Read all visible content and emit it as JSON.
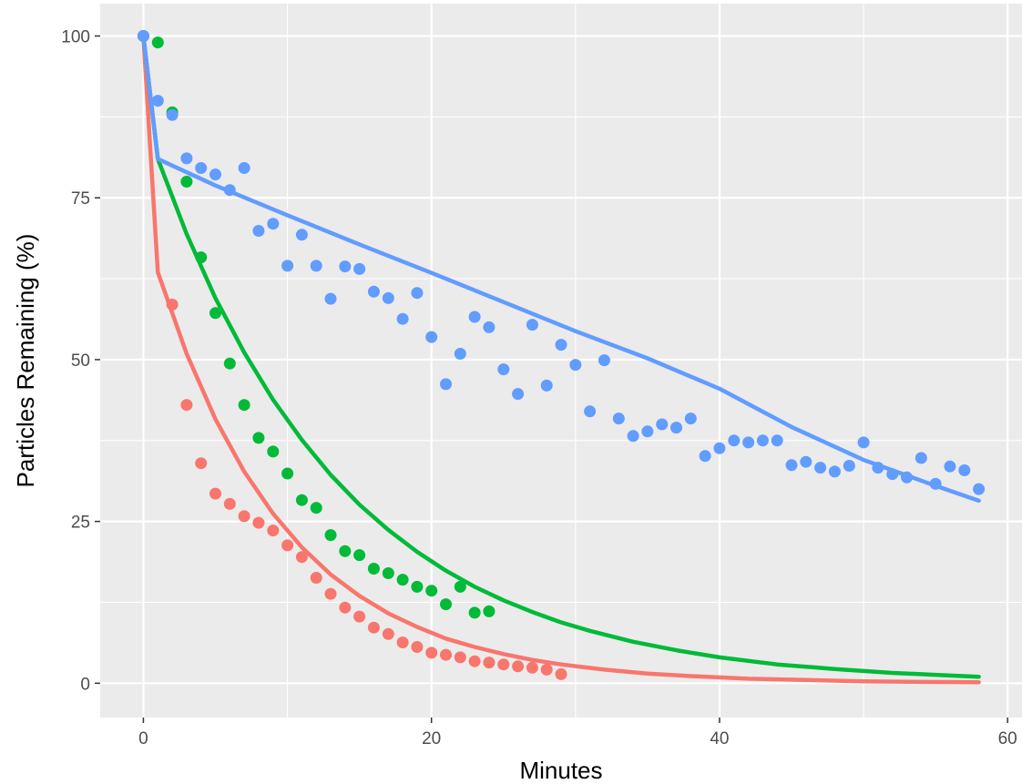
{
  "chart_data": {
    "type": "scatter",
    "title": "",
    "xlabel": "Minutes",
    "ylabel": "Particles Remaining (%)",
    "xlim": [
      -3,
      61
    ],
    "ylim": [
      -5.3,
      105
    ],
    "x_ticks": [
      0,
      20,
      40,
      60
    ],
    "y_ticks": [
      0,
      25,
      50,
      75,
      100
    ],
    "grid": true,
    "legend": "none",
    "series": [
      {
        "color": "#F8766D",
        "points": [
          [
            0,
            100
          ],
          [
            2,
            58.5
          ],
          [
            3,
            43
          ],
          [
            4,
            34
          ],
          [
            5,
            29.3
          ],
          [
            6,
            27.7
          ],
          [
            7,
            25.8
          ],
          [
            8,
            24.8
          ],
          [
            9,
            23.6
          ],
          [
            10,
            21.3
          ],
          [
            11,
            19.5
          ],
          [
            12,
            16.3
          ],
          [
            13,
            13.8
          ],
          [
            14,
            11.7
          ],
          [
            15,
            10.3
          ],
          [
            16,
            8.6
          ],
          [
            17,
            7.6
          ],
          [
            18,
            6.3
          ],
          [
            19,
            5.6
          ],
          [
            20,
            4.7
          ],
          [
            21,
            4.4
          ],
          [
            22,
            4.0
          ],
          [
            23,
            3.4
          ],
          [
            24,
            3.2
          ],
          [
            25,
            2.9
          ],
          [
            26,
            2.6
          ],
          [
            27,
            2.4
          ],
          [
            28,
            2.1
          ],
          [
            29,
            1.4
          ]
        ],
        "fit": [
          [
            0,
            100
          ],
          [
            1,
            63.5
          ],
          [
            3,
            50.9
          ],
          [
            5,
            40.8
          ],
          [
            7,
            32.7
          ],
          [
            9,
            26.2
          ],
          [
            11,
            21.0
          ],
          [
            13,
            16.8
          ],
          [
            15,
            13.5
          ],
          [
            17,
            10.8
          ],
          [
            19,
            8.7
          ],
          [
            21,
            6.9
          ],
          [
            23,
            5.6
          ],
          [
            25,
            4.5
          ],
          [
            27,
            3.6
          ],
          [
            29,
            2.9
          ],
          [
            32,
            2.1
          ],
          [
            35,
            1.5
          ],
          [
            38,
            1.1
          ],
          [
            42,
            0.7
          ],
          [
            46,
            0.5
          ],
          [
            50,
            0.3
          ],
          [
            54,
            0.2
          ],
          [
            58,
            0.15
          ]
        ]
      },
      {
        "color": "#00BA38",
        "points": [
          [
            0,
            100
          ],
          [
            1,
            99
          ],
          [
            2,
            88.2
          ],
          [
            3,
            77.5
          ],
          [
            4,
            65.8
          ],
          [
            5,
            57.2
          ],
          [
            6,
            49.4
          ],
          [
            7,
            43
          ],
          [
            8,
            37.9
          ],
          [
            9,
            35.8
          ],
          [
            10,
            32.4
          ],
          [
            11,
            28.3
          ],
          [
            12,
            27.1
          ],
          [
            13,
            22.9
          ],
          [
            14,
            20.4
          ],
          [
            15,
            19.8
          ],
          [
            16,
            17.7
          ],
          [
            17,
            17.0
          ],
          [
            18,
            16.0
          ],
          [
            19,
            14.9
          ],
          [
            20,
            14.3
          ],
          [
            21,
            12.2
          ],
          [
            22,
            14.9
          ],
          [
            23,
            10.9
          ],
          [
            24,
            11.1
          ]
        ],
        "fit": [
          [
            0,
            100
          ],
          [
            1,
            81
          ],
          [
            3,
            69.4
          ],
          [
            5,
            59.5
          ],
          [
            7,
            51.1
          ],
          [
            9,
            43.8
          ],
          [
            11,
            37.6
          ],
          [
            13,
            32.2
          ],
          [
            15,
            27.6
          ],
          [
            17,
            23.7
          ],
          [
            19,
            20.3
          ],
          [
            21,
            17.4
          ],
          [
            23,
            14.9
          ],
          [
            25,
            12.8
          ],
          [
            27,
            11.0
          ],
          [
            29,
            9.4
          ],
          [
            31,
            8.1
          ],
          [
            34,
            6.4
          ],
          [
            37,
            5.1
          ],
          [
            40,
            4.0
          ],
          [
            44,
            2.9
          ],
          [
            48,
            2.2
          ],
          [
            52,
            1.6
          ],
          [
            58,
            1.0
          ]
        ]
      },
      {
        "color": "#619CFF",
        "points": [
          [
            0,
            100
          ],
          [
            1,
            90
          ],
          [
            2,
            87.8
          ],
          [
            3,
            81.1
          ],
          [
            4,
            79.6
          ],
          [
            5,
            78.6
          ],
          [
            6,
            76.2
          ],
          [
            7,
            79.6
          ],
          [
            8,
            69.9
          ],
          [
            9,
            71
          ],
          [
            10,
            64.5
          ],
          [
            11,
            69.3
          ],
          [
            12,
            64.5
          ],
          [
            13,
            59.4
          ],
          [
            14,
            64.4
          ],
          [
            15,
            64
          ],
          [
            16,
            60.5
          ],
          [
            17,
            59.5
          ],
          [
            18,
            56.3
          ],
          [
            19,
            60.3
          ],
          [
            20,
            53.5
          ],
          [
            21,
            46.2
          ],
          [
            22,
            50.9
          ],
          [
            23,
            56.6
          ],
          [
            24,
            55
          ],
          [
            25,
            48.5
          ],
          [
            26,
            44.7
          ],
          [
            27,
            55.4
          ],
          [
            28,
            46
          ],
          [
            29,
            52.3
          ],
          [
            30,
            49.2
          ],
          [
            31,
            42
          ],
          [
            32,
            49.9
          ],
          [
            33,
            40.9
          ],
          [
            34,
            38.2
          ],
          [
            35,
            38.9
          ],
          [
            36,
            40
          ],
          [
            37,
            39.5
          ],
          [
            38,
            40.9
          ],
          [
            39,
            35.1
          ],
          [
            40,
            36.3
          ],
          [
            41,
            37.5
          ],
          [
            42,
            37.2
          ],
          [
            43,
            37.5
          ],
          [
            44,
            37.5
          ],
          [
            45,
            33.7
          ],
          [
            46,
            34.2
          ],
          [
            47,
            33.3
          ],
          [
            48,
            32.7
          ],
          [
            49,
            33.6
          ],
          [
            50,
            37.2
          ],
          [
            51,
            33.3
          ],
          [
            52,
            32.3
          ],
          [
            53,
            31.8
          ],
          [
            54,
            34.8
          ],
          [
            55,
            30.8
          ],
          [
            56,
            33.5
          ],
          [
            57,
            32.9
          ],
          [
            58,
            30
          ]
        ],
        "fit": [
          [
            0,
            100
          ],
          [
            1,
            81
          ],
          [
            5,
            76.9
          ],
          [
            10,
            72.3
          ],
          [
            15,
            67.8
          ],
          [
            20,
            63.4
          ],
          [
            25,
            58.9
          ],
          [
            30,
            54.4
          ],
          [
            35,
            50.2
          ],
          [
            40,
            45.5
          ],
          [
            45,
            39.6
          ],
          [
            50,
            34.5
          ],
          [
            55,
            30.5
          ],
          [
            58,
            28.2
          ]
        ]
      }
    ]
  }
}
